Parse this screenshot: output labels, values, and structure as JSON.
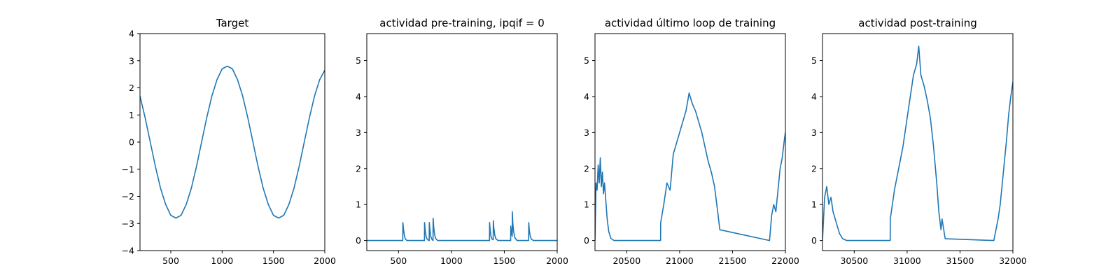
{
  "chart_data": [
    {
      "type": "line",
      "title": "Target",
      "xlabel": "",
      "ylabel": "",
      "xlim": [
        200,
        2000
      ],
      "ylim": [
        -4,
        4
      ],
      "xticks": [
        500,
        1000,
        1500,
        2000
      ],
      "yticks": [
        -4,
        -3,
        -2,
        -1,
        0,
        1,
        2,
        3,
        4
      ],
      "color": "#1f77b4",
      "series": [
        {
          "x": [
            200,
            250,
            300,
            350,
            400,
            450,
            500,
            550,
            600,
            650,
            700,
            750,
            800,
            850,
            900,
            950,
            1000,
            1050,
            1100,
            1150,
            1200,
            1250,
            1300,
            1350,
            1400,
            1450,
            1500,
            1550,
            1600,
            1650,
            1700,
            1750,
            1800,
            1850,
            1900,
            1950,
            2000
          ],
          "y": [
            1.7,
            0.9,
            0.0,
            -0.9,
            -1.7,
            -2.3,
            -2.7,
            -2.8,
            -2.7,
            -2.3,
            -1.7,
            -0.9,
            0.0,
            0.9,
            1.7,
            2.3,
            2.7,
            2.8,
            2.7,
            2.3,
            1.7,
            0.9,
            0.0,
            -0.9,
            -1.7,
            -2.3,
            -2.7,
            -2.8,
            -2.7,
            -2.3,
            -1.7,
            -0.9,
            0.0,
            0.9,
            1.7,
            2.3,
            2.65
          ]
        }
      ]
    },
    {
      "type": "line",
      "title": "actividad pre-training, ipqif = 0",
      "xlabel": "",
      "ylabel": "",
      "xlim": [
        200,
        2000
      ],
      "ylim": [
        -0.28,
        5.75
      ],
      "xticks": [
        500,
        1000,
        1500,
        2000
      ],
      "yticks": [
        0,
        1,
        2,
        3,
        4,
        5
      ],
      "color": "#1f77b4",
      "series": [
        {
          "x": [
            200,
            540,
            541,
            548,
            556,
            565,
            580,
            745,
            746,
            752,
            760,
            770,
            785,
            790,
            791,
            797,
            805,
            812,
            820,
            826,
            827,
            832,
            840,
            850,
            870,
            1360,
            1361,
            1366,
            1374,
            1384,
            1395,
            1396,
            1401,
            1410,
            1420,
            1440,
            1560,
            1561,
            1566,
            1572,
            1575,
            1576,
            1580,
            1588,
            1600,
            1620,
            1730,
            1731,
            1736,
            1745,
            1755,
            1775,
            2000
          ],
          "y": [
            0,
            0,
            0.5,
            0.3,
            0.12,
            0.04,
            0,
            0,
            0.5,
            0.3,
            0.12,
            0.04,
            0,
            0,
            0.5,
            0.3,
            0.12,
            0.05,
            0.02,
            0,
            0.62,
            0.4,
            0.18,
            0.06,
            0,
            0,
            0.5,
            0.3,
            0.12,
            0.04,
            0.02,
            0.55,
            0.35,
            0.15,
            0.05,
            0,
            0,
            0.4,
            0.25,
            0.15,
            0.12,
            0.8,
            0.5,
            0.25,
            0.08,
            0,
            0,
            0.5,
            0.3,
            0.12,
            0.04,
            0,
            0
          ]
        }
      ]
    },
    {
      "type": "line",
      "title": "actividad último loop de training",
      "xlabel": "",
      "ylabel": "",
      "xlim": [
        20200,
        22000
      ],
      "ylim": [
        -0.28,
        5.75
      ],
      "xticks": [
        20500,
        21000,
        21500,
        22000
      ],
      "yticks": [
        0,
        1,
        2,
        3,
        4,
        5
      ],
      "color": "#1f77b4",
      "series": [
        {
          "x": [
            20200,
            20210,
            20220,
            20230,
            20240,
            20250,
            20260,
            20270,
            20280,
            20290,
            20300,
            20315,
            20330,
            20350,
            20380,
            20820,
            20821,
            20850,
            20880,
            20910,
            20940,
            20970,
            21000,
            21030,
            21060,
            21090,
            21120,
            21150,
            21180,
            21210,
            21240,
            21270,
            21300,
            21330,
            21360,
            21380,
            21850,
            21870,
            21890,
            21910,
            21930,
            21950,
            21970,
            21990,
            22000
          ],
          "y": [
            0,
            1.6,
            1.4,
            2.1,
            1.6,
            2.3,
            1.5,
            1.9,
            1.3,
            1.6,
            1.2,
            0.6,
            0.25,
            0.06,
            0,
            0,
            0.5,
            1.0,
            1.6,
            1.4,
            2.4,
            2.7,
            3.0,
            3.3,
            3.6,
            4.1,
            3.8,
            3.6,
            3.3,
            3.0,
            2.6,
            2.2,
            1.9,
            1.5,
            0.8,
            0.3,
            0,
            0.7,
            1.0,
            0.8,
            1.4,
            2.0,
            2.3,
            2.8,
            3.0
          ]
        }
      ]
    },
    {
      "type": "line",
      "title": "actividad post-training",
      "xlabel": "",
      "ylabel": "",
      "xlim": [
        30200,
        32000
      ],
      "ylim": [
        -0.28,
        5.75
      ],
      "xticks": [
        30500,
        31000,
        31500,
        32000
      ],
      "yticks": [
        0,
        1,
        2,
        3,
        4,
        5
      ],
      "color": "#1f77b4",
      "series": [
        {
          "x": [
            30200,
            30220,
            30240,
            30260,
            30280,
            30300,
            30320,
            30340,
            30360,
            30390,
            30430,
            30840,
            30841,
            30880,
            30920,
            30960,
            31000,
            31030,
            31060,
            31090,
            31110,
            31130,
            31160,
            31190,
            31220,
            31250,
            31280,
            31300,
            31320,
            31330,
            31360,
            31820,
            31840,
            31860,
            31880,
            31900,
            31920,
            31940,
            31960,
            31980,
            32000
          ],
          "y": [
            0,
            1.2,
            1.5,
            1.0,
            1.2,
            0.8,
            0.6,
            0.4,
            0.2,
            0.05,
            0,
            0,
            0.6,
            1.4,
            2.0,
            2.6,
            3.4,
            4.0,
            4.6,
            4.9,
            5.4,
            4.6,
            4.3,
            3.9,
            3.4,
            2.6,
            1.6,
            0.8,
            0.3,
            0.6,
            0.05,
            0,
            0.3,
            0.6,
            1.0,
            1.6,
            2.2,
            2.8,
            3.5,
            4.0,
            4.4
          ]
        }
      ]
    }
  ]
}
